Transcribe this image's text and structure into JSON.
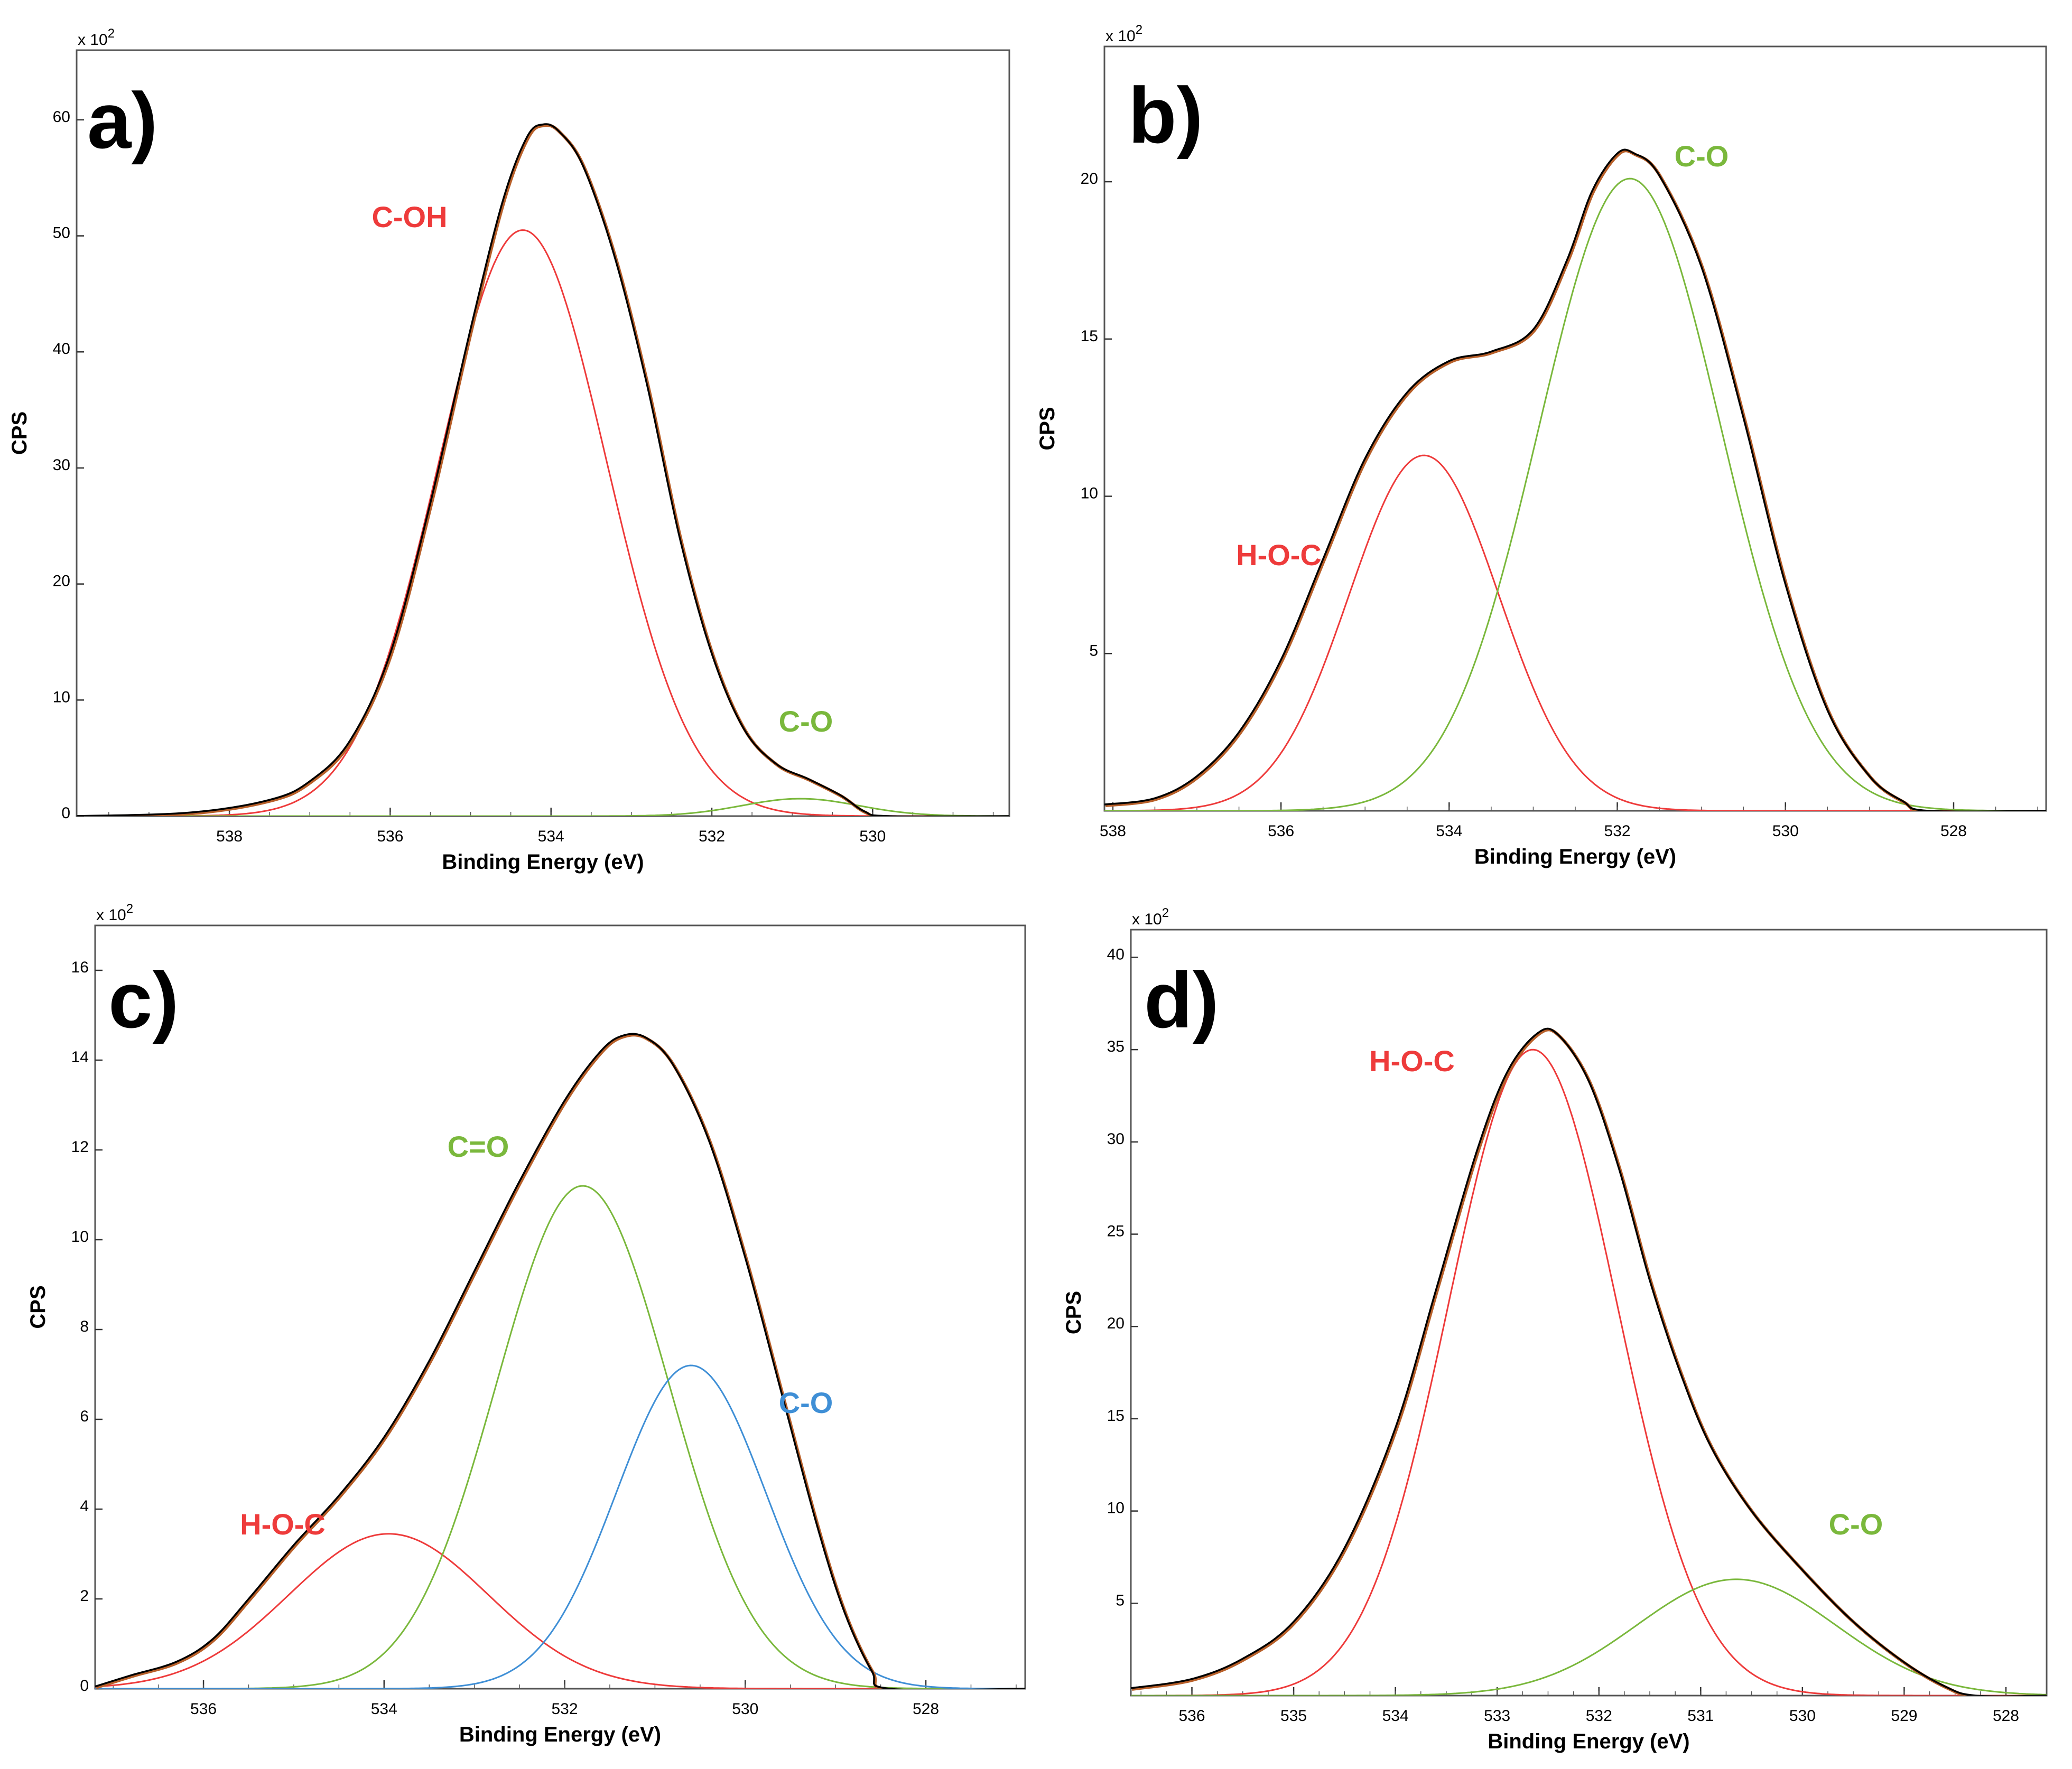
{
  "colors": {
    "envelope": "#000000",
    "envelope_fit": "#b8602a",
    "red": "#ee3b3b",
    "green": "#7ab83c",
    "blue": "#3f8fd6",
    "frame": "#555555"
  },
  "chart_data": [
    {
      "type": "line",
      "panel_label": "a)",
      "xlabel": "Binding Energy (eV)",
      "ylabel": "CPS",
      "scale_label": "x 10",
      "scale_exp": "2",
      "xlim": [
        539.9,
        528.3
      ],
      "ylim": [
        0,
        66
      ],
      "xticks": [
        538,
        536,
        534,
        532,
        530
      ],
      "xtick_labels": [
        "538",
        "536",
        "534",
        "532",
        "530"
      ],
      "yticks": [
        0,
        10,
        20,
        30,
        40,
        50,
        60
      ],
      "ytick_labels": [
        "0",
        "10",
        "20",
        "30",
        "40",
        "50",
        "60"
      ],
      "components": [
        {
          "label": "C-OH",
          "color": "red",
          "center": 534.35,
          "height": 50.5,
          "fwhm": 2.45,
          "show_label": true
        },
        {
          "label": "C-O",
          "color": "green",
          "center": 530.9,
          "height": 1.5,
          "fwhm": 1.7,
          "show_label": true
        }
      ],
      "envelope": [
        [
          539.9,
          0
        ],
        [
          538.5,
          0.3
        ],
        [
          537.5,
          1.4
        ],
        [
          537,
          3
        ],
        [
          536.5,
          6.5
        ],
        [
          536,
          14
        ],
        [
          535.5,
          27
        ],
        [
          535,
          42
        ],
        [
          534.6,
          53
        ],
        [
          534.3,
          58.5
        ],
        [
          534.1,
          59.6
        ],
        [
          533.9,
          59
        ],
        [
          533.6,
          56
        ],
        [
          533.2,
          48
        ],
        [
          532.8,
          37
        ],
        [
          532.4,
          24
        ],
        [
          532,
          14
        ],
        [
          531.6,
          7.5
        ],
        [
          531.2,
          4.5
        ],
        [
          530.8,
          3.2
        ],
        [
          530.4,
          1.8
        ],
        [
          530.1,
          0.4
        ],
        [
          529.8,
          0
        ],
        [
          528.3,
          0
        ]
      ]
    },
    {
      "type": "line",
      "panel_label": "b)",
      "xlabel": "Binding Energy (eV)",
      "ylabel": "CPS",
      "scale_label": "x 10",
      "scale_exp": "2",
      "xlim": [
        538.1,
        526.9
      ],
      "ylim": [
        0,
        24.3
      ],
      "xticks": [
        538,
        536,
        534,
        532,
        530,
        528
      ],
      "xtick_labels": [
        "538",
        "536",
        "534",
        "532",
        "530",
        "528"
      ],
      "yticks": [
        5,
        10,
        15,
        20
      ],
      "ytick_labels": [
        "5",
        "10",
        "15",
        "20"
      ],
      "components": [
        {
          "label": "H-O-C",
          "color": "red",
          "center": 534.3,
          "height": 11.3,
          "fwhm": 2.1,
          "show_label": true
        },
        {
          "label": "C-O",
          "color": "green",
          "center": 531.85,
          "height": 20.1,
          "fwhm": 2.55,
          "show_label": true
        }
      ],
      "envelope": [
        [
          538.1,
          0.2
        ],
        [
          537.5,
          0.4
        ],
        [
          537,
          1.1
        ],
        [
          536.5,
          2.5
        ],
        [
          536,
          4.8
        ],
        [
          535.5,
          8
        ],
        [
          535,
          11.2
        ],
        [
          534.5,
          13.3
        ],
        [
          534,
          14.3
        ],
        [
          533.5,
          14.6
        ],
        [
          533,
          15.3
        ],
        [
          532.6,
          17.5
        ],
        [
          532.3,
          19.7
        ],
        [
          532,
          20.9
        ],
        [
          531.8,
          20.9
        ],
        [
          531.5,
          20.2
        ],
        [
          531,
          17.3
        ],
        [
          530.5,
          12.5
        ],
        [
          530,
          7.2
        ],
        [
          529.5,
          3.2
        ],
        [
          529,
          1.1
        ],
        [
          528.6,
          0.3
        ],
        [
          528.3,
          0
        ],
        [
          526.9,
          0
        ]
      ]
    },
    {
      "type": "line",
      "panel_label": "c)",
      "xlabel": "Binding Energy (eV)",
      "ylabel": "CPS",
      "scale_label": "x 10",
      "scale_exp": "2",
      "xlim": [
        537.2,
        526.9
      ],
      "ylim": [
        0,
        17
      ],
      "xticks": [
        536,
        534,
        532,
        530,
        528
      ],
      "xtick_labels": [
        "536",
        "534",
        "532",
        "530",
        "528"
      ],
      "yticks": [
        0,
        2,
        4,
        6,
        8,
        10,
        12,
        14,
        16
      ],
      "ytick_labels": [
        "0",
        "2",
        "4",
        "6",
        "8",
        "10",
        "12",
        "14",
        "16"
      ],
      "components": [
        {
          "label": "H-O-C",
          "color": "red",
          "center": 533.95,
          "height": 3.45,
          "fwhm": 2.6,
          "show_label": true
        },
        {
          "label": "C=O",
          "color": "green",
          "center": 531.8,
          "height": 11.2,
          "fwhm": 2.25,
          "show_label": true
        },
        {
          "label": "C-O",
          "color": "blue",
          "center": 530.6,
          "height": 7.2,
          "fwhm": 1.95,
          "show_label": true
        }
      ],
      "envelope": [
        [
          537.2,
          0.05
        ],
        [
          536.8,
          0.3
        ],
        [
          536.3,
          0.6
        ],
        [
          535.9,
          1.1
        ],
        [
          535.5,
          2
        ],
        [
          535,
          3.2
        ],
        [
          534.5,
          4.3
        ],
        [
          534,
          5.6
        ],
        [
          533.5,
          7.3
        ],
        [
          533,
          9.3
        ],
        [
          532.5,
          11.3
        ],
        [
          532,
          13.1
        ],
        [
          531.6,
          14.2
        ],
        [
          531.35,
          14.55
        ],
        [
          531.1,
          14.5
        ],
        [
          530.8,
          13.9
        ],
        [
          530.4,
          12.2
        ],
        [
          530,
          9.6
        ],
        [
          529.6,
          6.6
        ],
        [
          529.2,
          3.6
        ],
        [
          528.9,
          1.7
        ],
        [
          528.6,
          0.4
        ],
        [
          528.4,
          0
        ],
        [
          526.9,
          0
        ]
      ]
    },
    {
      "type": "line",
      "panel_label": "d)",
      "xlabel": "Binding Energy (eV)",
      "ylabel": "CPS",
      "scale_label": "x 10",
      "scale_exp": "2",
      "xlim": [
        536.6,
        527.6
      ],
      "ylim": [
        0,
        41.5
      ],
      "xticks": [
        536,
        535,
        534,
        533,
        532,
        531,
        530,
        529,
        528
      ],
      "xtick_labels": [
        "536",
        "535",
        "534",
        "533",
        "532",
        "531",
        "530",
        "529",
        "528"
      ],
      "yticks": [
        5,
        10,
        15,
        20,
        25,
        30,
        35,
        40
      ],
      "ytick_labels": [
        "5",
        "10",
        "15",
        "20",
        "25",
        "30",
        "35",
        "40"
      ],
      "components": [
        {
          "label": "H-O-C",
          "color": "red",
          "center": 532.65,
          "height": 35,
          "fwhm": 1.95,
          "show_label": true
        },
        {
          "label": "C-O",
          "color": "green",
          "center": 530.65,
          "height": 6.3,
          "fwhm": 2.3,
          "show_label": true
        }
      ],
      "envelope": [
        [
          536.6,
          0.4
        ],
        [
          536,
          0.9
        ],
        [
          535.5,
          2
        ],
        [
          535,
          4
        ],
        [
          534.5,
          8
        ],
        [
          534,
          14.5
        ],
        [
          533.6,
          22
        ],
        [
          533.2,
          29.5
        ],
        [
          532.9,
          33.8
        ],
        [
          532.6,
          35.9
        ],
        [
          532.4,
          35.8
        ],
        [
          532.1,
          33.3
        ],
        [
          531.8,
          28.5
        ],
        [
          531.5,
          22.5
        ],
        [
          531.2,
          17.5
        ],
        [
          530.9,
          13.5
        ],
        [
          530.5,
          10
        ],
        [
          530,
          6.8
        ],
        [
          529.5,
          4
        ],
        [
          529,
          1.8
        ],
        [
          528.6,
          0.5
        ],
        [
          528.3,
          0
        ],
        [
          527.6,
          0
        ]
      ]
    }
  ]
}
